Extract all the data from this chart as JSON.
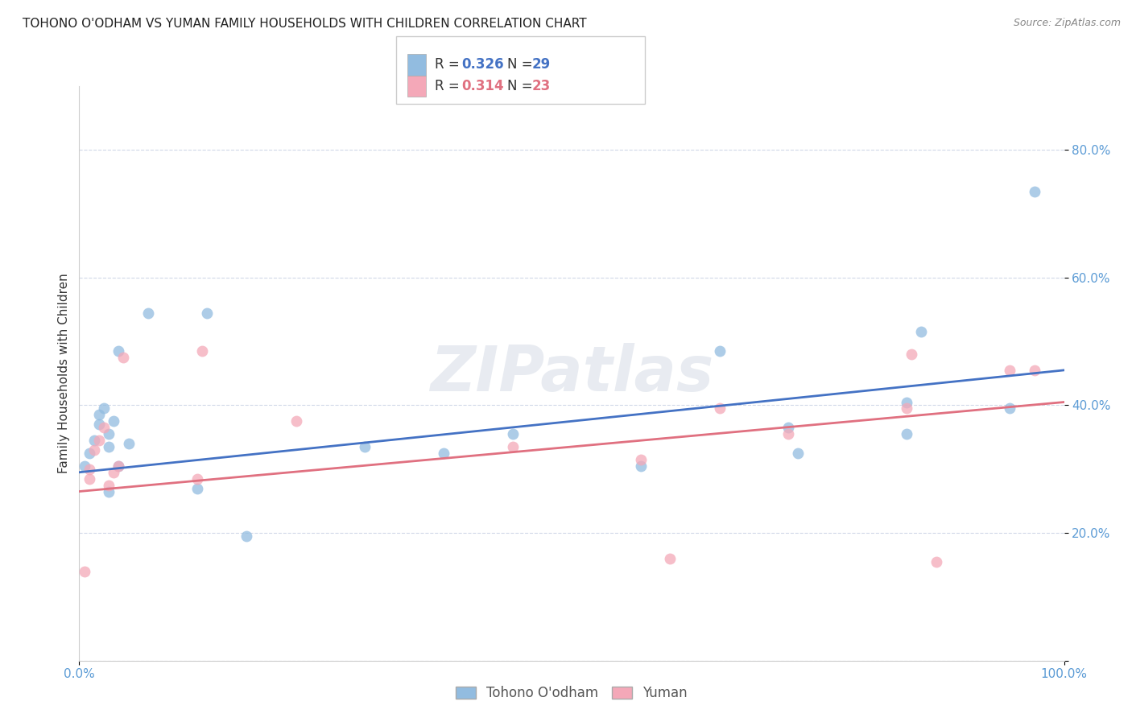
{
  "title": "TOHONO O'ODHAM VS YUMAN FAMILY HOUSEHOLDS WITH CHILDREN CORRELATION CHART",
  "source": "Source: ZipAtlas.com",
  "ylabel": "Family Households with Children",
  "watermark": "ZIPatlas",
  "legend_blue_r": "0.326",
  "legend_blue_n": "29",
  "legend_pink_r": "0.314",
  "legend_pink_n": "23",
  "legend_label_blue": "Tohono O'odham",
  "legend_label_pink": "Yuman",
  "blue_color": "#92bce0",
  "pink_color": "#f4a8b8",
  "blue_line_color": "#4472c4",
  "pink_line_color": "#e07080",
  "blue_text_color": "#4472c4",
  "pink_text_color": "#e07080",
  "grid_color": "#d0d8e8",
  "background_color": "#ffffff",
  "tick_color": "#5b9bd5",
  "xlim": [
    0.0,
    1.0
  ],
  "ylim": [
    0.0,
    0.9
  ],
  "yticks": [
    0.0,
    0.2,
    0.4,
    0.6,
    0.8
  ],
  "ytick_labels": [
    "",
    "20.0%",
    "40.0%",
    "60.0%",
    "80.0%"
  ],
  "blue_x": [
    0.005,
    0.01,
    0.015,
    0.02,
    0.02,
    0.025,
    0.03,
    0.03,
    0.03,
    0.035,
    0.04,
    0.04,
    0.05,
    0.07,
    0.12,
    0.13,
    0.17,
    0.29,
    0.37,
    0.44,
    0.57,
    0.65,
    0.72,
    0.73,
    0.84,
    0.84,
    0.855,
    0.945,
    0.97
  ],
  "blue_y": [
    0.305,
    0.325,
    0.345,
    0.37,
    0.385,
    0.395,
    0.265,
    0.335,
    0.355,
    0.375,
    0.305,
    0.485,
    0.34,
    0.545,
    0.27,
    0.545,
    0.195,
    0.335,
    0.325,
    0.355,
    0.305,
    0.485,
    0.365,
    0.325,
    0.405,
    0.355,
    0.515,
    0.395,
    0.735
  ],
  "pink_x": [
    0.005,
    0.01,
    0.01,
    0.015,
    0.02,
    0.025,
    0.03,
    0.035,
    0.04,
    0.045,
    0.12,
    0.125,
    0.22,
    0.44,
    0.57,
    0.6,
    0.65,
    0.72,
    0.84,
    0.845,
    0.87,
    0.945,
    0.97
  ],
  "pink_y": [
    0.14,
    0.285,
    0.3,
    0.33,
    0.345,
    0.365,
    0.275,
    0.295,
    0.305,
    0.475,
    0.285,
    0.485,
    0.375,
    0.335,
    0.315,
    0.16,
    0.395,
    0.355,
    0.395,
    0.48,
    0.155,
    0.455,
    0.455
  ],
  "blue_trend_start": 0.295,
  "blue_trend_end": 0.455,
  "pink_trend_start": 0.265,
  "pink_trend_end": 0.405,
  "trend_x_start": 0.0,
  "trend_x_end": 1.0,
  "title_fontsize": 11,
  "label_fontsize": 11,
  "tick_fontsize": 11,
  "legend_fontsize": 12,
  "marker_size": 100
}
